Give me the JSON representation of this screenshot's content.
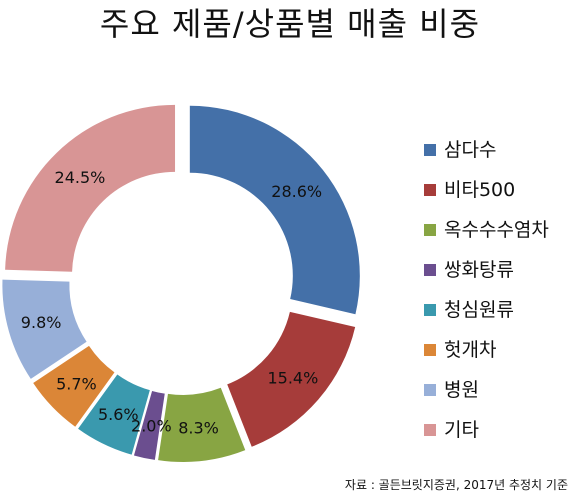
{
  "page_title": "주요 제품/상품별 매출 비중",
  "source_note": "자료 : 골든브릿지증권, 2017년 추정치 기준",
  "chart_data": {
    "type": "pie",
    "donut": true,
    "exploded": true,
    "title": "주요 제품/상품별 매출 비중",
    "legend_position": "right",
    "categories": [
      "삼다수",
      "비타500",
      "옥수수수염차",
      "쌍화탕류",
      "청심원류",
      "헛개차",
      "병원",
      "기타"
    ],
    "values": [
      28.6,
      15.4,
      8.3,
      2.0,
      5.6,
      5.7,
      9.8,
      24.5
    ],
    "value_labels": [
      "28.6%",
      "15.4%",
      "8.3%",
      "2.0%",
      "5.6%",
      "5.7%",
      "9.8%",
      "24.5%"
    ],
    "colors": [
      "#4470A8",
      "#A63C3A",
      "#88A543",
      "#6B4E8F",
      "#3A99AE",
      "#DB8637",
      "#97AFD8",
      "#D89595"
    ]
  }
}
